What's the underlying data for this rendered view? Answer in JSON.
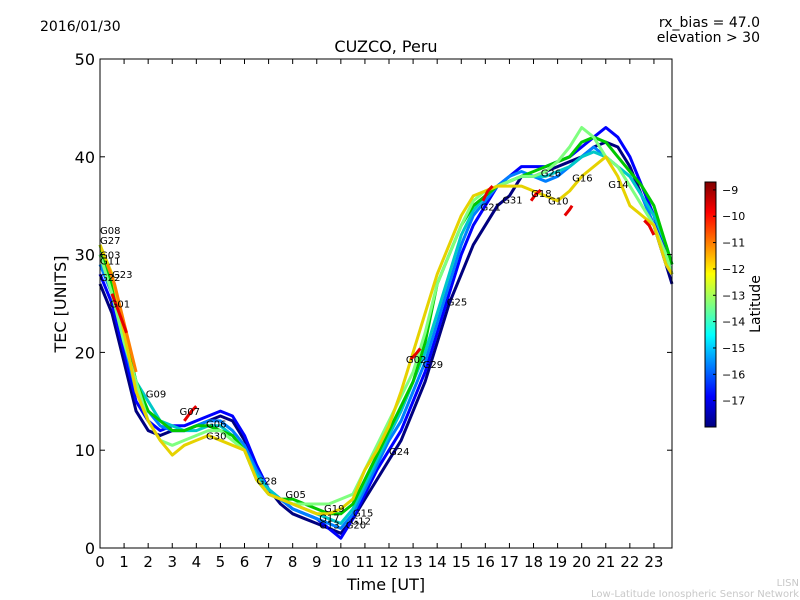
{
  "header": {
    "date": "2016/01/30",
    "rx_bias": "rx_bias = 47.0",
    "elevation": "elevation > 30"
  },
  "footer": {
    "line1": "LISN",
    "line2": "Low-Latitude Ionospheric Sensor Network"
  },
  "chart_data": {
    "type": "line",
    "title": "CUZCO, Peru",
    "xlabel": "Time [UT]",
    "ylabel": "TEC [UNITS]",
    "xlim": [
      0,
      23.75
    ],
    "ylim": [
      0,
      50
    ],
    "xticks": [
      0,
      1,
      2,
      3,
      4,
      5,
      6,
      7,
      8,
      9,
      10,
      11,
      12,
      13,
      14,
      15,
      16,
      17,
      18,
      19,
      20,
      21,
      22,
      23
    ],
    "yticks": [
      0,
      10,
      20,
      30,
      40,
      50
    ],
    "colorbar": {
      "label": "Latitude",
      "range": [
        -18,
        -8.7
      ],
      "ticks": [
        -9,
        -10,
        -11,
        -12,
        -13,
        -14,
        -15,
        -16,
        -17
      ],
      "colors": [
        "#00007f",
        "#0000ff",
        "#007fff",
        "#00ffff",
        "#7fff7f",
        "#ffff00",
        "#ff7f00",
        "#ff0000",
        "#7f0000"
      ]
    },
    "labels": [
      {
        "text": "G08",
        "x": 0.0,
        "y": 32.1
      },
      {
        "text": "G27",
        "x": 0.0,
        "y": 31.1
      },
      {
        "text": "G03",
        "x": 0.0,
        "y": 29.6
      },
      {
        "text": "G11",
        "x": 0.0,
        "y": 29.0
      },
      {
        "text": "G23",
        "x": 0.5,
        "y": 27.6
      },
      {
        "text": "G22",
        "x": 0.0,
        "y": 27.3
      },
      {
        "text": "G01",
        "x": 0.4,
        "y": 24.6
      },
      {
        "text": "G09",
        "x": 1.9,
        "y": 15.4
      },
      {
        "text": "G07",
        "x": 3.3,
        "y": 13.6
      },
      {
        "text": "G06",
        "x": 4.4,
        "y": 12.3
      },
      {
        "text": "G30",
        "x": 4.4,
        "y": 11.1
      },
      {
        "text": "G28",
        "x": 6.5,
        "y": 6.5
      },
      {
        "text": "G05",
        "x": 7.7,
        "y": 5.1
      },
      {
        "text": "G19",
        "x": 9.3,
        "y": 3.7
      },
      {
        "text": "G17",
        "x": 9.1,
        "y": 2.7
      },
      {
        "text": "G13",
        "x": 9.1,
        "y": 2.0
      },
      {
        "text": "G15",
        "x": 10.5,
        "y": 3.2
      },
      {
        "text": "G12",
        "x": 10.4,
        "y": 2.4
      },
      {
        "text": "G20",
        "x": 10.2,
        "y": 2.0
      },
      {
        "text": "G24",
        "x": 12.0,
        "y": 9.5
      },
      {
        "text": "G02",
        "x": 12.7,
        "y": 18.9
      },
      {
        "text": "G29",
        "x": 13.4,
        "y": 18.4
      },
      {
        "text": "G25",
        "x": 14.4,
        "y": 24.8
      },
      {
        "text": "G21",
        "x": 15.8,
        "y": 34.5
      },
      {
        "text": "G31",
        "x": 16.7,
        "y": 35.2
      },
      {
        "text": "G18",
        "x": 17.9,
        "y": 35.9
      },
      {
        "text": "G10",
        "x": 18.6,
        "y": 35.1
      },
      {
        "text": "G26",
        "x": 18.3,
        "y": 38.0
      },
      {
        "text": "G16",
        "x": 19.6,
        "y": 37.5
      },
      {
        "text": "G14",
        "x": 21.1,
        "y": 36.8
      }
    ],
    "series": [
      {
        "name": "navy",
        "color": "#00007f",
        "x": [
          0,
          0.5,
          1,
          1.5,
          2,
          2.5,
          3,
          3.5,
          4,
          4.5,
          5,
          5.5,
          6,
          6.5,
          7,
          7.5,
          8,
          8.5,
          9,
          9.5,
          10,
          10.5,
          11,
          11.5,
          12,
          12.5,
          13,
          13.5,
          14,
          14.5,
          15,
          15.5,
          16,
          16.5,
          17,
          17.5,
          18,
          18.5,
          19,
          19.5,
          20,
          20.5,
          21,
          21.5,
          22,
          22.5,
          23,
          23.5,
          23.75
        ],
        "y": [
          27,
          24,
          19,
          14,
          12,
          11.5,
          12,
          12,
          12.5,
          13,
          13.5,
          13,
          11,
          8,
          6,
          4.5,
          3.5,
          3,
          2.5,
          2,
          1.5,
          3,
          5,
          7,
          9,
          11,
          14,
          17,
          21,
          25,
          28,
          31,
          33,
          35,
          36,
          38,
          38,
          38.5,
          39,
          39.5,
          40,
          41,
          41.5,
          41,
          39,
          36,
          33,
          29,
          27
        ]
      },
      {
        "name": "blue",
        "color": "#0000ff",
        "x": [
          0,
          0.5,
          1,
          1.5,
          2,
          2.5,
          3,
          3.5,
          4,
          4.5,
          5,
          5.5,
          6,
          6.5,
          7,
          7.5,
          8,
          8.5,
          9,
          9.5,
          10,
          10.5,
          11,
          11.5,
          12,
          12.5,
          13,
          13.5,
          14,
          14.5,
          15,
          15.5,
          16,
          16.5,
          17,
          17.5,
          18,
          18.5,
          19,
          19.5,
          20,
          20.5,
          21,
          21.5,
          22,
          22.5,
          23,
          23.5,
          23.75
        ],
        "y": [
          28,
          25,
          20,
          15,
          13,
          12,
          12.5,
          12.5,
          13,
          13.5,
          14,
          13.5,
          11.5,
          8.5,
          6,
          5,
          4,
          3.5,
          3,
          2,
          1,
          3,
          5.5,
          8,
          10,
          12,
          15,
          18,
          22,
          26,
          30,
          33,
          35,
          37,
          38,
          39,
          39,
          39,
          39.5,
          40,
          41,
          42,
          43,
          42,
          40,
          37,
          34,
          30,
          28
        ]
      },
      {
        "name": "azure",
        "color": "#007fff",
        "x": [
          0,
          0.5,
          1,
          1.5,
          2,
          2.5,
          3,
          3.5,
          4,
          4.5,
          5,
          5.5,
          6,
          6.5,
          7,
          7.5,
          8,
          8.5,
          9,
          9.5,
          10,
          10.5,
          11,
          11.5,
          12,
          12.5,
          13,
          13.5,
          14,
          14.5,
          15,
          15.5,
          16,
          16.5,
          17,
          17.5,
          18,
          18.5,
          19,
          19.5,
          20,
          20.5,
          21,
          21.5,
          22,
          22.5,
          23,
          23.5,
          23.75
        ],
        "y": [
          29,
          26,
          21,
          16,
          14,
          12.5,
          12,
          12,
          12.5,
          13,
          13,
          12,
          10.5,
          8,
          6,
          5,
          4,
          3.5,
          3,
          2.5,
          2,
          3.5,
          6,
          8.5,
          11,
          13,
          16,
          19,
          23,
          27,
          31,
          34,
          35.5,
          37,
          38,
          38.5,
          38,
          37.5,
          38,
          39,
          40,
          41,
          40,
          39,
          38,
          36,
          33,
          29,
          28
        ]
      },
      {
        "name": "cyan",
        "color": "#00c8c8",
        "x": [
          0,
          0.5,
          1,
          1.5,
          2,
          2.5,
          3,
          3.5,
          4,
          4.5,
          5,
          5.5,
          6,
          6.5,
          7,
          7.5,
          8,
          8.5,
          9,
          9.5,
          10,
          10.5,
          11,
          11.5,
          12,
          12.5,
          13,
          13.5,
          14,
          14.5,
          15,
          15.5,
          16,
          16.5,
          17,
          17.5,
          18,
          18.5,
          19,
          19.5,
          20,
          20.5,
          21,
          21.5,
          22,
          22.5,
          23,
          23.5,
          23.75
        ],
        "y": [
          30,
          27,
          22,
          17,
          15,
          13,
          12.5,
          12,
          12,
          12.5,
          12.5,
          11.5,
          10,
          7.5,
          6,
          5,
          4.5,
          4,
          3.5,
          3,
          2.5,
          4,
          6.5,
          9,
          11.5,
          14,
          17,
          20,
          24,
          28,
          32,
          34.5,
          36,
          37,
          37.5,
          38,
          38,
          38,
          38.5,
          39,
          40,
          40.5,
          40,
          39,
          38,
          36,
          34,
          31,
          29
        ]
      },
      {
        "name": "green",
        "color": "#00c800",
        "x": [
          0,
          0.5,
          1,
          1.5,
          2,
          2.5,
          3,
          3.5,
          4,
          4.5,
          5,
          5.5,
          6,
          6.5,
          7,
          7.5,
          8,
          8.5,
          9,
          9.5,
          10,
          10.5,
          11,
          11.5,
          12,
          12.5,
          13,
          13.5,
          14,
          14.5,
          15,
          15.5,
          16,
          16.5,
          17,
          17.5,
          18,
          18.5,
          19,
          19.5,
          20,
          20.5,
          21,
          21.5,
          22,
          22.5,
          23,
          23.5,
          23.75
        ],
        "y": [
          31,
          27,
          22,
          17,
          14,
          13,
          12,
          12,
          12.5,
          12.5,
          12,
          11.5,
          10,
          7,
          5.5,
          5,
          5,
          4.5,
          4,
          3.5,
          3.5,
          4.5,
          7,
          9.5,
          12,
          14.5,
          17,
          21,
          27,
          30,
          33,
          35,
          36,
          37,
          37.5,
          38,
          38.5,
          39,
          39.5,
          40,
          41.5,
          42,
          41.5,
          40,
          38.5,
          37,
          35,
          31,
          29
        ]
      },
      {
        "name": "lime",
        "color": "#7fff7f",
        "x": [
          0,
          0.5,
          1,
          1.5,
          2,
          2.5,
          3,
          3.5,
          4,
          4.5,
          5,
          5.5,
          6,
          6.5,
          7,
          7.5,
          8,
          8.5,
          9,
          9.5,
          10,
          10.5,
          11,
          11.5,
          12,
          12.5,
          13,
          13.5,
          14,
          14.5,
          15,
          15.5,
          16,
          16.5,
          17,
          17.5,
          18,
          18.5,
          19,
          19.5,
          20,
          20.5,
          21,
          21.5,
          22,
          22.5,
          23,
          23.5,
          23.75
        ],
        "y": [
          30,
          26,
          21,
          17,
          13,
          11,
          10.5,
          11,
          11.5,
          12,
          12,
          11,
          10,
          7,
          5.5,
          5,
          4.5,
          4.5,
          4.5,
          4.5,
          5,
          5.5,
          8,
          10.5,
          13,
          15.5,
          18,
          22,
          27,
          30,
          33,
          35.5,
          36.5,
          37,
          37.5,
          38,
          38,
          38.5,
          39.5,
          41,
          43,
          42,
          40,
          39,
          37,
          35,
          33,
          30,
          28
        ]
      },
      {
        "name": "yellow",
        "color": "#e6d200",
        "x": [
          0,
          0.5,
          1,
          1.5,
          2,
          2.5,
          3,
          3.5,
          4,
          4.5,
          5,
          5.5,
          6,
          6.5,
          7,
          7.5,
          8,
          8.5,
          9,
          9.5,
          10,
          10.5,
          11,
          11.5,
          12,
          12.5,
          13,
          13.5,
          14,
          14.5,
          15,
          15.5,
          16,
          16.5,
          17,
          17.5,
          18,
          18.5,
          19,
          19.5,
          20,
          20.5,
          21,
          21.5,
          22,
          22.5,
          23,
          23.5,
          23.75
        ],
        "y": [
          31,
          28,
          22,
          16,
          13,
          11,
          9.5,
          10.5,
          11,
          11.5,
          11,
          10.5,
          10,
          7,
          5.5,
          5,
          4.5,
          4,
          3.5,
          3.5,
          4,
          5,
          8,
          10,
          12.5,
          16,
          20,
          24,
          28,
          31,
          34,
          36,
          36.5,
          37,
          37,
          37,
          36.5,
          36,
          35.5,
          36.5,
          38,
          39,
          40,
          38,
          35,
          34,
          33,
          29,
          28
        ]
      },
      {
        "name": "orange",
        "color": "#ff7f00",
        "x": [
          0.3,
          0.6,
          0.9,
          1.2,
          1.5
        ],
        "y": [
          29,
          27,
          24,
          21,
          18
        ]
      },
      {
        "name": "red",
        "color": "#e60000",
        "x": [
          0.5,
          0.8,
          1.1
        ],
        "y": [
          26,
          24,
          22
        ]
      },
      {
        "name": "red2",
        "color": "#e60000",
        "x": [
          15.9,
          16.1,
          16.3
        ],
        "y": [
          35.5,
          36.5,
          37
        ]
      },
      {
        "name": "red3",
        "color": "#e60000",
        "x": [
          17.9,
          18.1,
          18.3
        ],
        "y": [
          35.5,
          36.2,
          36.6
        ]
      },
      {
        "name": "red4",
        "color": "#e60000",
        "x": [
          19.3,
          19.5,
          19.6
        ],
        "y": [
          34,
          34.6,
          35
        ]
      },
      {
        "name": "red5",
        "color": "#e60000",
        "x": [
          22.6,
          22.8,
          23.0
        ],
        "y": [
          33.5,
          33,
          32
        ]
      },
      {
        "name": "red6",
        "color": "#e60000",
        "x": [
          12.9,
          13.1,
          13.3
        ],
        "y": [
          19.3,
          19.8,
          20.4
        ]
      },
      {
        "name": "red7",
        "color": "#e60000",
        "x": [
          3.5,
          3.8,
          4.0
        ],
        "y": [
          13,
          14,
          14.5
        ]
      }
    ]
  }
}
